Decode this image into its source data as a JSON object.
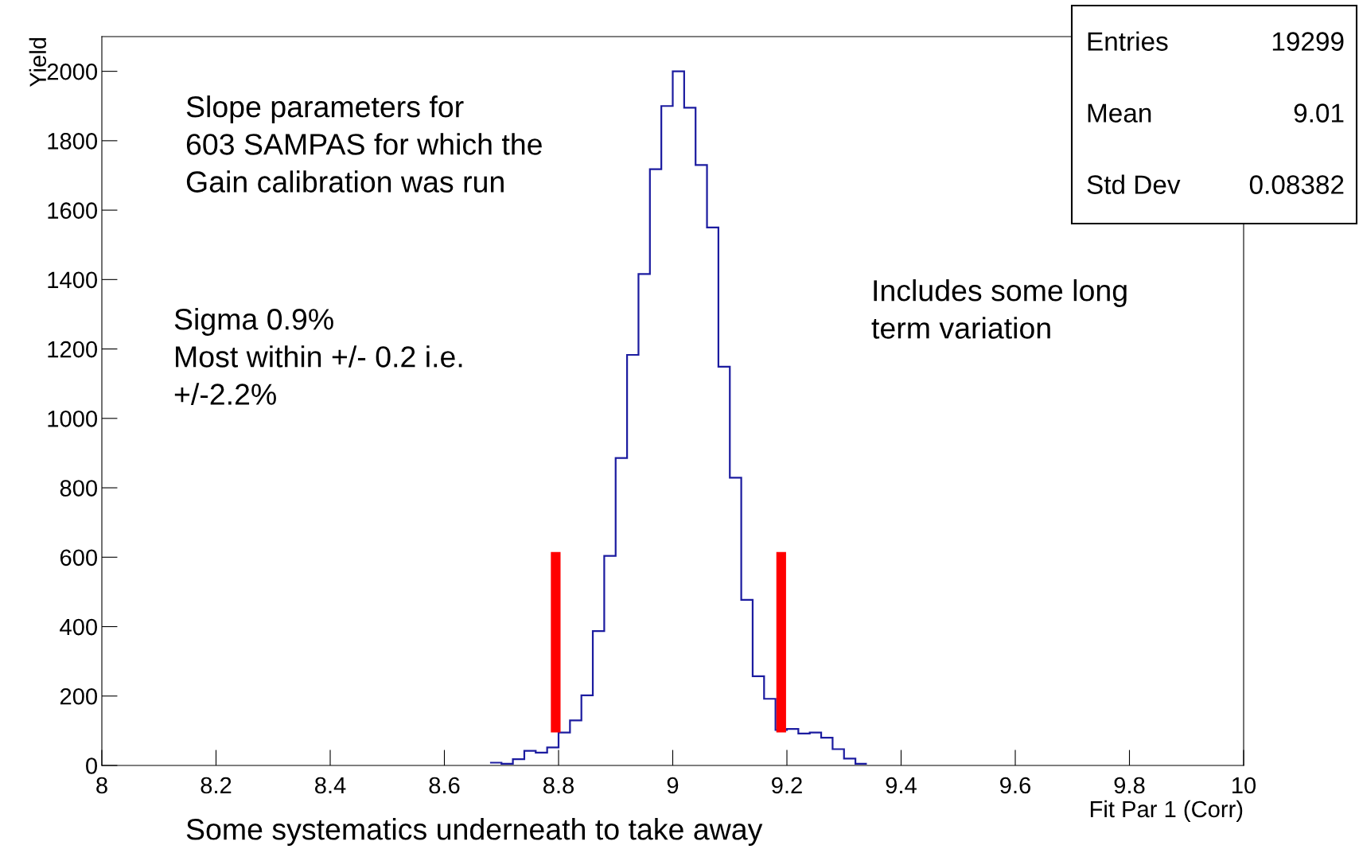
{
  "chart_data": {
    "type": "histogram",
    "xlabel": "Fit Par 1 (Corr)",
    "ylabel": "Yield",
    "xlim": [
      8,
      10
    ],
    "xticks": [
      8,
      8.2,
      8.4,
      8.6,
      8.8,
      9,
      9.2,
      9.4,
      9.6,
      9.8,
      10
    ],
    "ylim": [
      0,
      2100
    ],
    "yticks": [
      0,
      200,
      400,
      600,
      800,
      1000,
      1200,
      1400,
      1600,
      1800,
      2000
    ],
    "grid": false,
    "series": [
      {
        "color": "#1c1ca0",
        "bins": [
          8.68,
          8.7,
          8.72,
          8.74,
          8.76,
          8.78,
          8.8,
          8.82,
          8.84,
          8.86,
          8.88,
          8.9,
          8.92,
          8.94,
          8.96,
          8.98,
          9.0,
          9.02,
          9.04,
          9.06,
          9.08,
          9.1,
          9.12,
          9.14,
          9.16,
          9.18,
          9.2,
          9.22,
          9.24,
          9.26,
          9.28,
          9.3,
          9.32,
          9.34
        ],
        "values": [
          8,
          5,
          18,
          42,
          37,
          52,
          95,
          130,
          202,
          387,
          604,
          886,
          1183,
          1416,
          1718,
          1900,
          2000,
          1895,
          1730,
          1550,
          1149,
          829,
          477,
          257,
          192,
          102,
          105,
          92,
          95,
          80,
          47,
          20,
          5
        ]
      },
      {
        "type": "bar",
        "color": "#ff0000",
        "x": [
          8.795,
          9.19
        ],
        "base": [
          95,
          95
        ],
        "values": [
          520,
          520
        ]
      }
    ],
    "annotations": [
      "Entries",
      "19299",
      "Mean",
      "9.01",
      "Std Dev",
      "0.08382",
      "Slope parameters for\n603 SAMPAS for which the\nGain calibration was run",
      "Sigma 0.9%\nMost within +/- 0.2 i.e.\n+/-2.2%",
      "Includes some long\nterm variation",
      "Some systematics underneath to take away"
    ]
  }
}
